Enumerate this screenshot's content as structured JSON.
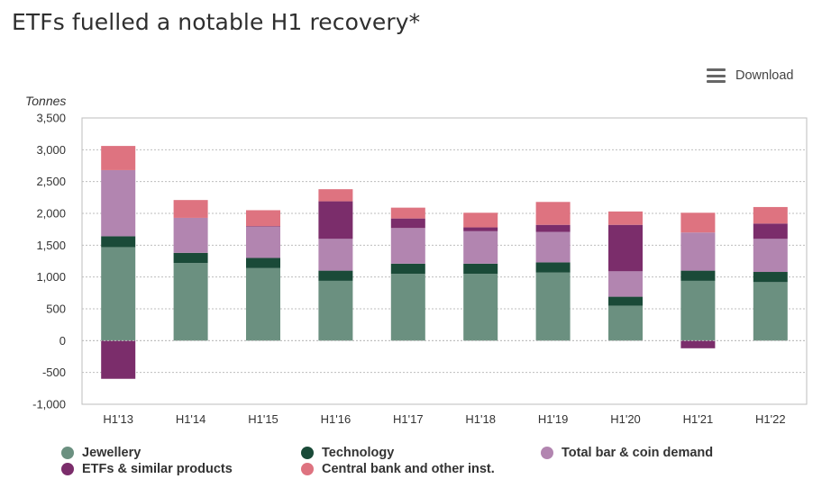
{
  "page": {
    "title": "ETFs fuelled a notable H1 recovery*",
    "download_label": "Download",
    "download_icon": "menu-icon"
  },
  "chart_data": {
    "type": "bar",
    "stacked": true,
    "title": "ETFs fuelled a notable H1 recovery*",
    "ylabel": "Tonnes",
    "xlabel": "",
    "ylim": [
      -1000,
      3500
    ],
    "yticks": [
      -1000,
      -500,
      0,
      500,
      1000,
      1500,
      2000,
      2500,
      3000,
      3500
    ],
    "ytick_labels": [
      "-1,000",
      "-500",
      "0",
      "500",
      "1,000",
      "1,500",
      "2,000",
      "2,500",
      "3,000",
      "3,500"
    ],
    "grid": true,
    "categories": [
      "H1'13",
      "H1'14",
      "H1'15",
      "H1'16",
      "H1'17",
      "H1'18",
      "H1'19",
      "H1'20",
      "H1'21",
      "H1'22"
    ],
    "series": [
      {
        "name": "Jewellery",
        "color": "#6b9080",
        "values": [
          1470,
          1220,
          1140,
          940,
          1050,
          1050,
          1070,
          550,
          940,
          920
        ]
      },
      {
        "name": "Technology",
        "color": "#1a4a38",
        "values": [
          170,
          160,
          160,
          160,
          160,
          160,
          160,
          140,
          160,
          160
        ]
      },
      {
        "name": "Total bar & coin demand",
        "color": "#b285b0",
        "values": [
          1040,
          550,
          490,
          500,
          560,
          510,
          480,
          400,
          600,
          520
        ]
      },
      {
        "name": "ETFs & similar products",
        "color": "#7b2d6b",
        "values": [
          -600,
          0,
          10,
          590,
          150,
          60,
          110,
          730,
          -120,
          240
        ]
      },
      {
        "name": "Central bank and other inst.",
        "color": "#de7380",
        "values": [
          380,
          280,
          250,
          190,
          170,
          230,
          360,
          210,
          310,
          260
        ]
      }
    ],
    "legend_position": "bottom"
  }
}
